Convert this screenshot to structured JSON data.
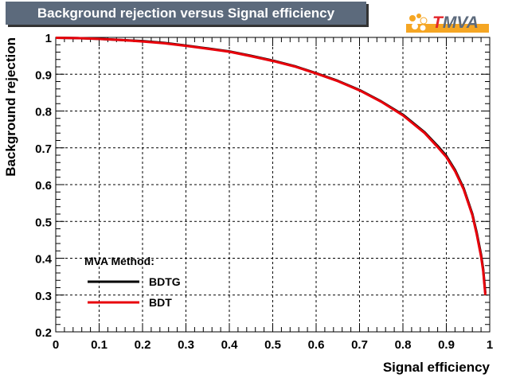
{
  "title": "Background rejection versus Signal efficiency",
  "logo": {
    "prefix": "T",
    "suffix": "MVA"
  },
  "colors": {
    "title_bg": "#5c6a7c",
    "bdtg": "#000000",
    "bdt": "#e8000b",
    "logo_orange": "#f5a623",
    "logo_red": "#e3262b"
  },
  "chart_data": {
    "type": "line",
    "title": "Background rejection versus Signal efficiency",
    "xlabel": "Signal efficiency",
    "ylabel": "Background rejection",
    "xlim": [
      0,
      1
    ],
    "ylim": [
      0.2,
      1
    ],
    "xticks": [
      0,
      0.1,
      0.2,
      0.3,
      0.4,
      0.5,
      0.6,
      0.7,
      0.8,
      0.9,
      1
    ],
    "xtick_labels": [
      "0",
      "0.1",
      "0.2",
      "0.3",
      "0.4",
      "0.5",
      "0.6",
      "0.7",
      "0.8",
      "0.9",
      "1"
    ],
    "yticks": [
      0.2,
      0.3,
      0.4,
      0.5,
      0.6,
      0.7,
      0.8,
      0.9,
      1
    ],
    "ytick_labels": [
      "0.2",
      "0.3",
      "0.4",
      "0.5",
      "0.6",
      "0.7",
      "0.8",
      "0.9",
      "1"
    ],
    "grid": true,
    "legend": {
      "title": "MVA Method:",
      "placement": "bottom-left"
    },
    "series": [
      {
        "name": "BDTG",
        "color": "#000000",
        "x": [
          0,
          0.05,
          0.1,
          0.15,
          0.2,
          0.25,
          0.3,
          0.35,
          0.4,
          0.45,
          0.5,
          0.55,
          0.6,
          0.65,
          0.7,
          0.75,
          0.8,
          0.85,
          0.88,
          0.9,
          0.92,
          0.94,
          0.96,
          0.97,
          0.98,
          0.985,
          0.99
        ],
        "y": [
          0.999,
          0.998,
          0.996,
          0.993,
          0.99,
          0.985,
          0.978,
          0.97,
          0.962,
          0.95,
          0.937,
          0.922,
          0.903,
          0.882,
          0.857,
          0.826,
          0.79,
          0.742,
          0.705,
          0.678,
          0.64,
          0.59,
          0.52,
          0.47,
          0.41,
          0.37,
          0.305
        ]
      },
      {
        "name": "BDT",
        "color": "#e8000b",
        "x": [
          0,
          0.05,
          0.1,
          0.15,
          0.2,
          0.25,
          0.3,
          0.35,
          0.4,
          0.45,
          0.5,
          0.55,
          0.6,
          0.65,
          0.7,
          0.75,
          0.8,
          0.85,
          0.88,
          0.9,
          0.92,
          0.94,
          0.96,
          0.97,
          0.98,
          0.985,
          0.99
        ],
        "y": [
          0.999,
          0.998,
          0.996,
          0.993,
          0.989,
          0.984,
          0.977,
          0.969,
          0.961,
          0.949,
          0.936,
          0.921,
          0.902,
          0.881,
          0.856,
          0.825,
          0.788,
          0.74,
          0.702,
          0.675,
          0.637,
          0.587,
          0.517,
          0.466,
          0.405,
          0.365,
          0.3
        ]
      }
    ]
  }
}
